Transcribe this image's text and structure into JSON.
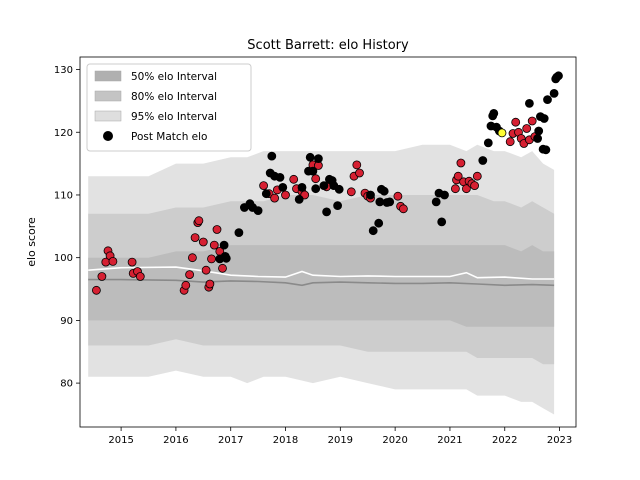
{
  "chart_data": {
    "type": "scatter",
    "title": "Scott Barrett: elo History",
    "xlabel": "",
    "ylabel": "elo score",
    "xlim": [
      2014.25,
      2023.3
    ],
    "ylim": [
      73,
      132
    ],
    "x_ticks": [
      {
        "value": 2015,
        "label": "2015"
      },
      {
        "value": 2016,
        "label": "2016"
      },
      {
        "value": 2017,
        "label": "2017"
      },
      {
        "value": 2018,
        "label": "2018"
      },
      {
        "value": 2019,
        "label": "2019"
      },
      {
        "value": 2020,
        "label": "2020"
      },
      {
        "value": 2021,
        "label": "2021"
      },
      {
        "value": 2022,
        "label": "2022"
      },
      {
        "value": 2023,
        "label": "2023"
      }
    ],
    "y_ticks": [
      {
        "value": 80,
        "label": "80"
      },
      {
        "value": 90,
        "label": "90"
      },
      {
        "value": 100,
        "label": "100"
      },
      {
        "value": 110,
        "label": "110"
      },
      {
        "value": 120,
        "label": "120"
      },
      {
        "value": 130,
        "label": "130"
      }
    ],
    "legend": {
      "placement": "upper-left",
      "entries": [
        {
          "label": "50% elo Interval",
          "kind": "patch",
          "color": "#b0b0b0"
        },
        {
          "label": "80% elo Interval",
          "kind": "patch",
          "color": "#c4c4c4"
        },
        {
          "label": "95% elo Interval",
          "kind": "patch",
          "color": "#dedede"
        },
        {
          "label": "Post Match elo",
          "kind": "marker",
          "color": "#000000"
        }
      ]
    },
    "bands": {
      "x": [
        2014.4,
        2014.6,
        2015.0,
        2015.5,
        2016.0,
        2016.5,
        2017.0,
        2017.3,
        2017.6,
        2018.0,
        2018.5,
        2019.0,
        2019.5,
        2020.0,
        2020.5,
        2021.0,
        2021.3,
        2021.5,
        2021.8,
        2022.0,
        2022.3,
        2022.5,
        2022.7,
        2022.9
      ],
      "b95": {
        "upper": [
          113,
          113,
          113,
          113,
          115,
          115,
          116,
          116,
          117,
          117,
          117,
          117,
          117,
          117,
          118,
          118,
          117,
          118,
          117,
          117,
          116,
          117,
          115,
          114
        ],
        "lower": [
          81,
          81,
          81,
          81,
          82,
          81,
          81,
          80,
          81,
          81,
          80,
          81,
          80,
          79,
          79,
          79,
          79,
          78,
          78,
          78,
          77,
          77,
          76,
          75
        ]
      },
      "b80": {
        "upper": [
          107,
          107,
          107,
          107,
          108,
          108,
          109,
          109,
          109,
          110,
          110,
          109,
          110,
          110,
          110,
          110,
          110,
          110,
          109,
          109,
          108,
          109,
          108,
          107
        ],
        "lower": [
          86,
          86,
          86,
          86,
          87,
          86,
          86,
          86,
          86,
          86,
          86,
          86,
          85,
          85,
          85,
          85,
          85,
          84,
          84,
          84,
          84,
          84,
          83,
          83
        ]
      },
      "b50": {
        "upper": [
          100,
          100,
          100,
          100,
          101,
          101,
          102,
          102,
          102,
          102,
          102,
          102,
          102,
          102,
          102,
          102,
          102,
          102,
          102,
          102,
          101,
          102,
          101,
          101
        ],
        "lower": [
          90,
          90,
          90,
          90,
          90,
          90,
          90,
          90,
          90,
          90,
          90,
          90,
          90,
          90,
          90,
          90,
          89,
          89,
          89,
          89,
          89,
          89,
          89,
          89
        ]
      }
    },
    "median_line": {
      "color": "#8a8a8a",
      "x": [
        2014.4,
        2015.0,
        2016.0,
        2016.5,
        2017.0,
        2017.5,
        2018.0,
        2018.3,
        2018.5,
        2019.0,
        2019.5,
        2020.0,
        2020.5,
        2021.0,
        2021.5,
        2022.0,
        2022.5,
        2022.9
      ],
      "y": [
        96.5,
        96.5,
        96.4,
        96.1,
        96.3,
        96.2,
        96.0,
        95.6,
        96.0,
        96.1,
        96.0,
        95.9,
        95.9,
        96.0,
        95.8,
        95.6,
        95.7,
        95.6
      ]
    },
    "mean_line": {
      "color": "#ffffff",
      "x": [
        2014.4,
        2015.0,
        2016.0,
        2016.5,
        2017.0,
        2017.5,
        2018.0,
        2018.3,
        2018.5,
        2019.0,
        2019.5,
        2020.0,
        2020.5,
        2021.0,
        2021.3,
        2021.5,
        2022.0,
        2022.5,
        2022.9
      ],
      "y": [
        98.0,
        98.4,
        98.5,
        97.9,
        97.2,
        97.0,
        96.9,
        97.8,
        97.2,
        97.0,
        97.1,
        97.0,
        97.0,
        97.0,
        97.6,
        96.8,
        96.9,
        96.6,
        96.6
      ]
    },
    "series": [
      {
        "name": "Post Match elo",
        "color": "#d62032",
        "points": [
          [
            2014.55,
            94.8
          ],
          [
            2014.65,
            97.0
          ],
          [
            2014.72,
            99.3
          ],
          [
            2014.76,
            101.1
          ],
          [
            2014.8,
            100.3
          ],
          [
            2014.85,
            99.4
          ],
          [
            2015.2,
            99.3
          ],
          [
            2015.22,
            97.5
          ],
          [
            2015.3,
            97.8
          ],
          [
            2015.35,
            97.0
          ],
          [
            2016.15,
            94.8
          ],
          [
            2016.18,
            95.6
          ],
          [
            2016.25,
            97.3
          ],
          [
            2016.3,
            100.0
          ],
          [
            2016.35,
            103.2
          ],
          [
            2016.4,
            105.6
          ],
          [
            2016.42,
            105.9
          ],
          [
            2016.5,
            102.5
          ],
          [
            2016.55,
            98.0
          ],
          [
            2016.6,
            95.3
          ],
          [
            2016.62,
            95.8
          ],
          [
            2016.65,
            99.8
          ],
          [
            2016.7,
            102.0
          ],
          [
            2016.75,
            104.5
          ],
          [
            2016.8,
            101.0
          ],
          [
            2016.85,
            98.3
          ],
          [
            2017.6,
            111.5
          ],
          [
            2017.7,
            110.2
          ],
          [
            2017.8,
            109.5
          ],
          [
            2017.85,
            110.8
          ],
          [
            2018.0,
            110.0
          ],
          [
            2018.15,
            112.5
          ],
          [
            2018.2,
            111.0
          ],
          [
            2018.3,
            110.5
          ],
          [
            2018.35,
            110.0
          ],
          [
            2018.5,
            114.8
          ],
          [
            2018.55,
            112.6
          ],
          [
            2018.6,
            114.7
          ],
          [
            2018.75,
            111.3
          ],
          [
            2019.2,
            110.5
          ],
          [
            2019.25,
            113.0
          ],
          [
            2019.3,
            114.8
          ],
          [
            2019.35,
            113.5
          ],
          [
            2019.45,
            110.3
          ],
          [
            2019.5,
            109.8
          ],
          [
            2019.55,
            109.5
          ],
          [
            2020.05,
            109.8
          ],
          [
            2020.1,
            108.2
          ],
          [
            2020.15,
            107.8
          ],
          [
            2021.1,
            111.0
          ],
          [
            2021.12,
            112.4
          ],
          [
            2021.15,
            113.0
          ],
          [
            2021.2,
            115.1
          ],
          [
            2021.25,
            112.1
          ],
          [
            2021.3,
            111.0
          ],
          [
            2021.35,
            112.2
          ],
          [
            2021.4,
            111.8
          ],
          [
            2021.45,
            111.5
          ],
          [
            2021.5,
            113.0
          ],
          [
            2022.1,
            118.5
          ],
          [
            2022.15,
            119.8
          ],
          [
            2022.2,
            121.6
          ],
          [
            2022.25,
            120.0
          ],
          [
            2022.3,
            119.0
          ],
          [
            2022.35,
            118.2
          ],
          [
            2022.4,
            120.6
          ],
          [
            2022.45,
            118.8
          ],
          [
            2022.5,
            121.8
          ],
          [
            2022.55,
            119.3
          ]
        ]
      },
      {
        "name": "Post Match elo",
        "color": "#000000",
        "points": [
          [
            2016.8,
            99.8
          ],
          [
            2016.88,
            102.0
          ],
          [
            2016.9,
            100.2
          ],
          [
            2016.92,
            99.9
          ],
          [
            2017.15,
            104.0
          ],
          [
            2017.25,
            108.0
          ],
          [
            2017.35,
            108.6
          ],
          [
            2017.4,
            108.0
          ],
          [
            2017.5,
            107.5
          ],
          [
            2017.65,
            110.2
          ],
          [
            2017.72,
            113.5
          ],
          [
            2017.75,
            116.2
          ],
          [
            2017.8,
            113.0
          ],
          [
            2017.9,
            112.8
          ],
          [
            2017.95,
            111.2
          ],
          [
            2018.25,
            109.3
          ],
          [
            2018.3,
            111.2
          ],
          [
            2018.42,
            113.8
          ],
          [
            2018.45,
            116.0
          ],
          [
            2018.5,
            113.8
          ],
          [
            2018.55,
            111.0
          ],
          [
            2018.6,
            115.8
          ],
          [
            2018.7,
            111.5
          ],
          [
            2018.75,
            107.3
          ],
          [
            2018.8,
            112.5
          ],
          [
            2018.85,
            112.3
          ],
          [
            2018.88,
            111.5
          ],
          [
            2018.95,
            108.3
          ],
          [
            2018.98,
            110.9
          ],
          [
            2019.55,
            110.0
          ],
          [
            2019.6,
            104.3
          ],
          [
            2019.7,
            105.5
          ],
          [
            2019.72,
            108.9
          ],
          [
            2019.75,
            110.9
          ],
          [
            2019.8,
            110.6
          ],
          [
            2019.85,
            108.8
          ],
          [
            2019.9,
            108.9
          ],
          [
            2020.75,
            108.9
          ],
          [
            2020.8,
            110.3
          ],
          [
            2020.85,
            105.7
          ],
          [
            2020.9,
            110.0
          ],
          [
            2021.6,
            115.5
          ],
          [
            2021.7,
            118.3
          ],
          [
            2021.75,
            121.0
          ],
          [
            2021.78,
            122.6
          ],
          [
            2021.8,
            123.0
          ],
          [
            2021.85,
            120.8
          ],
          [
            2021.9,
            120.2
          ],
          [
            2022.45,
            124.6
          ],
          [
            2022.6,
            119.0
          ],
          [
            2022.62,
            120.2
          ],
          [
            2022.65,
            122.5
          ],
          [
            2022.7,
            117.3
          ],
          [
            2022.72,
            122.2
          ],
          [
            2022.75,
            117.2
          ],
          [
            2022.78,
            125.2
          ],
          [
            2022.9,
            126.2
          ],
          [
            2022.93,
            128.5
          ],
          [
            2022.95,
            128.8
          ],
          [
            2022.98,
            129.0
          ]
        ]
      },
      {
        "name": "Post Match elo",
        "color": "#ffff33",
        "points": [
          [
            2021.95,
            119.9
          ]
        ]
      }
    ]
  }
}
